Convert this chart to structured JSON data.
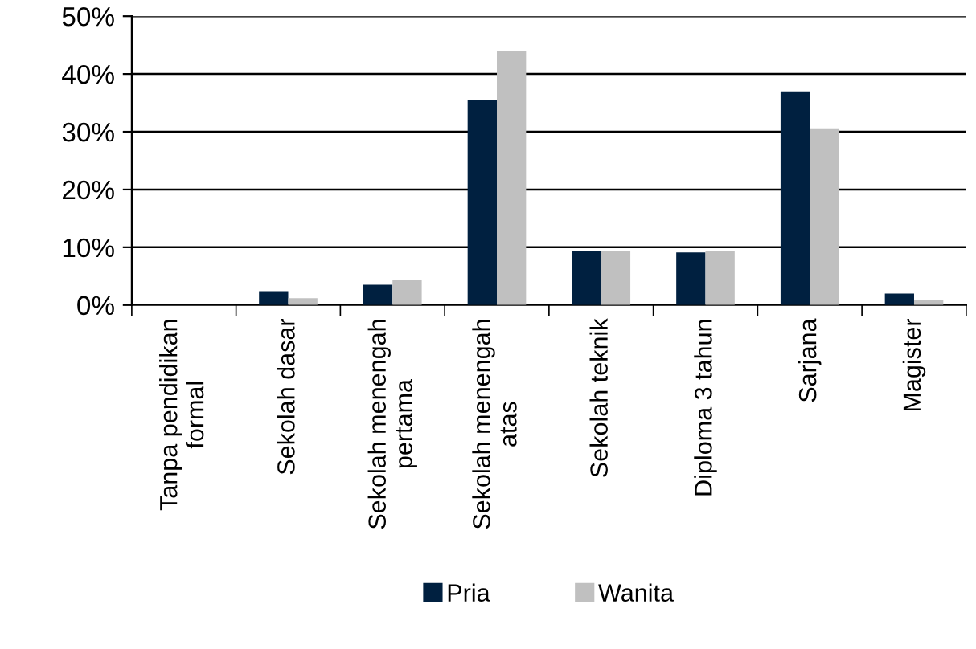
{
  "chart_data": {
    "type": "bar",
    "categories": [
      "Tanpa pendidikan\nformal",
      "Sekolah dasar",
      "Sekolah menengah\npertama",
      "Sekolah menengah\natas",
      "Sekolah teknik",
      "Diploma 3 tahun",
      "Sarjana",
      "Magister"
    ],
    "series": [
      {
        "name": "Pria",
        "color": "#002040",
        "values": [
          0,
          2.4,
          3.5,
          35.5,
          9.4,
          9.1,
          37,
          2.0
        ]
      },
      {
        "name": "Wanita",
        "color": "#c0c0c0",
        "values": [
          0,
          1.2,
          4.3,
          44,
          9.4,
          9.4,
          30.6,
          0.8
        ]
      }
    ],
    "ylim": [
      0,
      50
    ],
    "yticks": [
      {
        "value": 0,
        "label": "0%"
      },
      {
        "value": 10,
        "label": "10%"
      },
      {
        "value": 20,
        "label": "20%"
      },
      {
        "value": 30,
        "label": "30%"
      },
      {
        "value": 40,
        "label": "40%"
      },
      {
        "value": 50,
        "label": "50%"
      }
    ],
    "grid": "y",
    "legend": "bottom"
  }
}
